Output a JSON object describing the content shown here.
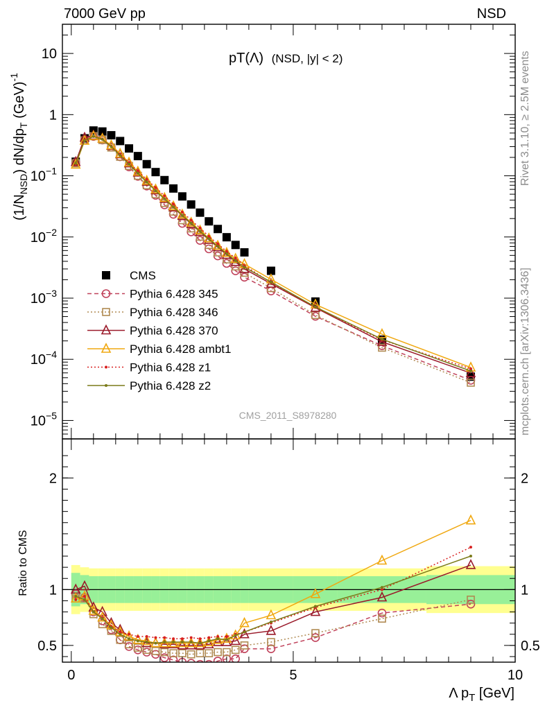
{
  "header": {
    "left": "7000 GeV pp",
    "right": "NSD"
  },
  "side_text": {
    "rivet": "Rivet 3.1.10, ≥ 2.5M events",
    "mcplots": "mcplots.cern.ch [arXiv:1306.3436]"
  },
  "watermark": "CMS_2011_S8978280",
  "colors": {
    "cms": "#000000",
    "p345": "#c0415a",
    "p346": "#b08a52",
    "p370": "#9a1a2a",
    "ambt1": "#f0a810",
    "z1": "#d82020",
    "z2": "#7a7a18",
    "band_green": "#98f098",
    "band_yellow": "#ffff90"
  },
  "chart_data": [
    {
      "type": "scatter",
      "panel": "main",
      "title": "pT(Λ) (NSD, |y| < 2)",
      "title_main": "pT(Λ)",
      "title_sub": "(NSD, |y| < 2)",
      "ylabel": "(1/N_NSD) dN/dp_T (GeV)^-1",
      "ylabel_parts": {
        "a": "(1/N",
        "a_sub": "NSD",
        "b": ") dN/dp",
        "b_sub": "T",
        "c": " (GeV)",
        "c_sup": "-1"
      },
      "yscale": "log",
      "ylim": [
        5e-06,
        30
      ],
      "xlim": [
        -0.2,
        10.0
      ],
      "y_ticks": [
        {
          "value": 10,
          "label": "10"
        },
        {
          "value": 1,
          "label": "1"
        },
        {
          "value": 0.1,
          "base": "10",
          "exp": "−1"
        },
        {
          "value": 0.01,
          "base": "10",
          "exp": "−2"
        },
        {
          "value": 0.001,
          "base": "10",
          "exp": "−3"
        },
        {
          "value": 0.0001,
          "base": "10",
          "exp": "−4"
        },
        {
          "value": 1e-05,
          "base": "10",
          "exp": "−5"
        }
      ],
      "x": [
        0.1,
        0.3,
        0.5,
        0.7,
        0.9,
        1.1,
        1.3,
        1.5,
        1.7,
        1.9,
        2.1,
        2.3,
        2.5,
        2.7,
        2.9,
        3.1,
        3.3,
        3.5,
        3.7,
        3.9,
        4.5,
        5.5,
        7.0,
        9.0
      ],
      "series": [
        {
          "name": "CMS",
          "key": "cms",
          "marker": "filled-square",
          "line": "none",
          "values": [
            0.17,
            0.41,
            0.55,
            0.53,
            0.46,
            0.37,
            0.28,
            0.21,
            0.155,
            0.115,
            0.085,
            0.062,
            0.046,
            0.034,
            0.025,
            0.018,
            0.0135,
            0.0099,
            0.0074,
            0.0056,
            0.0028,
            0.00088,
            0.00021,
            5.2e-05
          ]
        },
        {
          "name": "Pythia 6.428 345",
          "key": "p345",
          "marker": "open-circle",
          "line": "dashed",
          "values": [
            0.165,
            0.385,
            0.44,
            0.385,
            0.295,
            0.205,
            0.14,
            0.098,
            0.068,
            0.048,
            0.0335,
            0.0235,
            0.0167,
            0.0121,
            0.0088,
            0.0064,
            0.0049,
            0.0037,
            0.0028,
            0.0022,
            0.00131,
            0.000505,
            0.000167,
            4.55e-05
          ]
        },
        {
          "name": "Pythia 6.428 346",
          "key": "p346",
          "marker": "open-square",
          "line": "dotted",
          "values": [
            0.16,
            0.38,
            0.445,
            0.385,
            0.29,
            0.205,
            0.145,
            0.1,
            0.07,
            0.05,
            0.036,
            0.026,
            0.0188,
            0.0138,
            0.0101,
            0.0074,
            0.0056,
            0.0043,
            0.0033,
            0.0026,
            0.00146,
            0.00053,
            0.000155,
            4.15e-05
          ]
        },
        {
          "name": "Pythia 6.428 370",
          "key": "p370",
          "marker": "open-triangle",
          "line": "solid",
          "values": [
            0.168,
            0.42,
            0.455,
            0.405,
            0.31,
            0.225,
            0.16,
            0.113,
            0.08,
            0.058,
            0.042,
            0.0305,
            0.0222,
            0.0163,
            0.0121,
            0.009,
            0.0068,
            0.0051,
            0.0039,
            0.003,
            0.00172,
            0.000698,
            0.000193,
            5.95e-05
          ]
        },
        {
          "name": "Pythia 6.428 ambt1",
          "key": "ambt1",
          "marker": "open-triangle",
          "line": "solid",
          "values": [
            0.152,
            0.375,
            0.445,
            0.405,
            0.315,
            0.23,
            0.165,
            0.117,
            0.083,
            0.06,
            0.0435,
            0.0318,
            0.0233,
            0.0172,
            0.0128,
            0.0095,
            0.0072,
            0.0055,
            0.0044,
            0.0036,
            0.00203,
            0.000788,
            0.000258,
            7.35e-05
          ]
        },
        {
          "name": "Pythia 6.428 z1",
          "key": "z1",
          "marker": "dot",
          "line": "dotted",
          "values": [
            0.155,
            0.385,
            0.44,
            0.4,
            0.305,
            0.225,
            0.165,
            0.12,
            0.087,
            0.064,
            0.047,
            0.0345,
            0.0255,
            0.0188,
            0.014,
            0.0102,
            0.0077,
            0.0058,
            0.0045,
            0.0034,
            0.0018,
            0.000705,
            0.000208,
            7e-05
          ]
        },
        {
          "name": "Pythia 6.428 z2",
          "key": "z2",
          "marker": "dot",
          "line": "solid",
          "values": [
            0.16,
            0.375,
            0.44,
            0.395,
            0.3,
            0.215,
            0.155,
            0.11,
            0.079,
            0.057,
            0.042,
            0.031,
            0.0226,
            0.0168,
            0.0124,
            0.0093,
            0.007,
            0.0053,
            0.0041,
            0.0032,
            0.00183,
            0.000718,
            0.000213,
            6.45e-05
          ]
        }
      ],
      "legend_position": "lower-left",
      "grid": false
    },
    {
      "type": "line",
      "panel": "ratio",
      "ylabel": "Ratio to CMS",
      "xlabel": "Λ p_T [GeV]",
      "xlabel_parts": {
        "a": "Λ p",
        "a_sub": "T",
        "b": " [GeV]"
      },
      "ylim": [
        0.35,
        2.35
      ],
      "xlim": [
        -0.2,
        10.0
      ],
      "y_ticks": [
        {
          "value": 2,
          "label": "2"
        },
        {
          "value": 1,
          "label": "1"
        },
        {
          "value": 0.5,
          "label": "0.5"
        }
      ],
      "x_ticks": [
        {
          "value": 0,
          "label": "0"
        },
        {
          "value": 5,
          "label": "5"
        },
        {
          "value": 10,
          "label": "10"
        }
      ],
      "reference_line": 1,
      "bands": {
        "edges": [
          0.0,
          0.2,
          0.4,
          0.6,
          0.8,
          1.0,
          1.2,
          1.4,
          1.6,
          1.8,
          2.0,
          2.2,
          2.4,
          2.6,
          2.8,
          3.0,
          3.2,
          3.4,
          3.6,
          3.8,
          4.0,
          5.0,
          6.0,
          8.0,
          10.0
        ],
        "green": [
          0.15,
          0.13,
          0.12,
          0.12,
          0.12,
          0.12,
          0.12,
          0.12,
          0.12,
          0.12,
          0.12,
          0.12,
          0.12,
          0.12,
          0.12,
          0.12,
          0.12,
          0.12,
          0.12,
          0.12,
          0.12,
          0.12,
          0.12,
          0.13
        ],
        "yellow": [
          0.22,
          0.2,
          0.19,
          0.19,
          0.19,
          0.19,
          0.19,
          0.19,
          0.19,
          0.19,
          0.19,
          0.19,
          0.19,
          0.19,
          0.19,
          0.19,
          0.19,
          0.19,
          0.19,
          0.19,
          0.19,
          0.19,
          0.19,
          0.21
        ]
      },
      "x": [
        0.1,
        0.3,
        0.5,
        0.7,
        0.9,
        1.1,
        1.3,
        1.5,
        1.7,
        1.9,
        2.1,
        2.3,
        2.5,
        2.7,
        2.9,
        3.1,
        3.3,
        3.5,
        3.7,
        3.9,
        4.5,
        5.5,
        7.0,
        9.0
      ],
      "series": [
        {
          "key": "p345",
          "marker": "open-circle",
          "line": "dashed",
          "values": [
            0.96,
            0.93,
            0.8,
            0.72,
            0.64,
            0.55,
            0.49,
            0.46,
            0.44,
            0.42,
            0.39,
            0.37,
            0.35,
            0.34,
            0.33,
            0.33,
            0.36,
            0.38,
            0.38,
            0.47,
            0.47,
            0.57,
            0.79,
            0.87
          ]
        },
        {
          "key": "p346",
          "marker": "open-square",
          "line": "dotted",
          "values": [
            0.92,
            0.92,
            0.78,
            0.69,
            0.63,
            0.55,
            0.51,
            0.48,
            0.46,
            0.45,
            0.44,
            0.43,
            0.43,
            0.42,
            0.43,
            0.43,
            0.44,
            0.44,
            0.46,
            0.5,
            0.53,
            0.61,
            0.74,
            0.91
          ]
        },
        {
          "key": "p370",
          "marker": "open-triangle",
          "line": "solid",
          "values": [
            1.0,
            1.03,
            0.84,
            0.8,
            0.7,
            0.64,
            0.58,
            0.55,
            0.52,
            0.52,
            0.51,
            0.51,
            0.5,
            0.5,
            0.5,
            0.51,
            0.53,
            0.53,
            0.54,
            0.6,
            0.63,
            0.8,
            0.93,
            1.22
          ]
        },
        {
          "key": "ambt1",
          "marker": "open-triangle",
          "line": "solid",
          "values": [
            0.92,
            0.94,
            0.81,
            0.75,
            0.68,
            0.62,
            0.58,
            0.55,
            0.54,
            0.52,
            0.52,
            0.52,
            0.52,
            0.52,
            0.52,
            0.53,
            0.55,
            0.56,
            0.59,
            0.7,
            0.77,
            0.96,
            1.26,
            1.62
          ]
        },
        {
          "key": "z1",
          "marker": "dot",
          "line": "dotted",
          "values": [
            0.91,
            0.94,
            0.8,
            0.75,
            0.67,
            0.62,
            0.6,
            0.58,
            0.58,
            0.57,
            0.57,
            0.56,
            0.56,
            0.57,
            0.56,
            0.57,
            0.58,
            0.58,
            0.6,
            0.62,
            0.7,
            0.84,
            1.0,
            1.38
          ]
        },
        {
          "key": "z2",
          "marker": "dot",
          "line": "solid",
          "values": [
            0.94,
            0.91,
            0.8,
            0.74,
            0.66,
            0.6,
            0.56,
            0.54,
            0.53,
            0.52,
            0.53,
            0.53,
            0.53,
            0.53,
            0.52,
            0.54,
            0.56,
            0.55,
            0.59,
            0.62,
            0.71,
            0.85,
            1.02,
            1.3
          ]
        }
      ],
      "grid": false
    }
  ]
}
